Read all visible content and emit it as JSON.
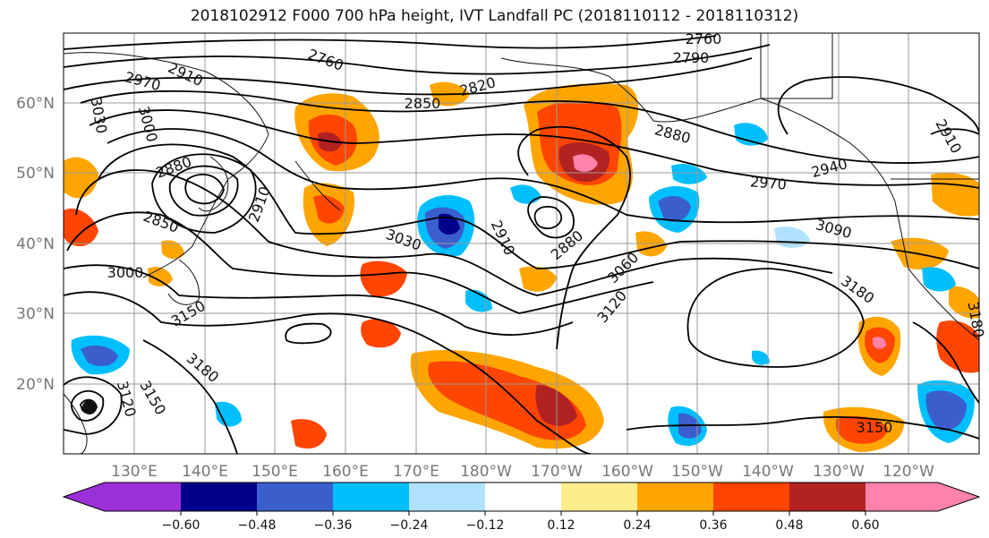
{
  "title": "2018102912 F000 700 hPa height, IVT Landfall PC (2018110112 - 2018110312)",
  "map": {
    "lat_labels": [
      "60°N",
      "50°N",
      "40°N",
      "30°N",
      "20°N"
    ],
    "lon_labels": [
      "130°E",
      "140°E",
      "150°E",
      "160°E",
      "170°E",
      "180°W",
      "170°W",
      "160°W",
      "150°W",
      "140°W",
      "130°W",
      "120°W"
    ],
    "contour_labels": [
      "3030",
      "2970",
      "2910",
      "2760",
      "2820",
      "2850",
      "2760",
      "2790",
      "3000",
      "2880",
      "2850",
      "2910",
      "3000",
      "3150",
      "3180",
      "3120",
      "3150",
      "3030",
      "2910",
      "2880",
      "3060",
      "3120",
      "2880",
      "2940",
      "2970",
      "3090",
      "3180",
      "3150",
      "2910",
      "3180"
    ]
  },
  "colorbar": {
    "colors": [
      "#9b30d9",
      "#00008b",
      "#3a5fcd",
      "#00bfff",
      "#b0e2ff",
      "#ffffff",
      "#ffec8b",
      "#ffa500",
      "#ff4500",
      "#b22222",
      "#ff82ab"
    ],
    "tick_labels": [
      "−0.60",
      "−0.48",
      "−0.36",
      "−0.24",
      "−0.12",
      "0.12",
      "0.24",
      "0.36",
      "0.48",
      "0.60"
    ]
  },
  "chart_data": {
    "type": "heatmap",
    "title": "2018102912 F000 700 hPa height, IVT Landfall PC (2018110112 - 2018110312)",
    "variable_contours": "700 hPa height",
    "variable_shaded": "IVT Landfall PC",
    "colorbar_levels": [
      -0.6,
      -0.48,
      -0.36,
      -0.24,
      -0.12,
      0.12,
      0.24,
      0.36,
      0.48,
      0.6
    ],
    "contour_levels_labeled": [
      2760,
      2790,
      2820,
      2850,
      2880,
      2910,
      2940,
      2970,
      3000,
      3030,
      3060,
      3090,
      3120,
      3150,
      3180
    ],
    "lat_range": [
      "10°N",
      "70°N"
    ],
    "lon_range": [
      "120°E",
      "110°W"
    ],
    "grid": true
  }
}
